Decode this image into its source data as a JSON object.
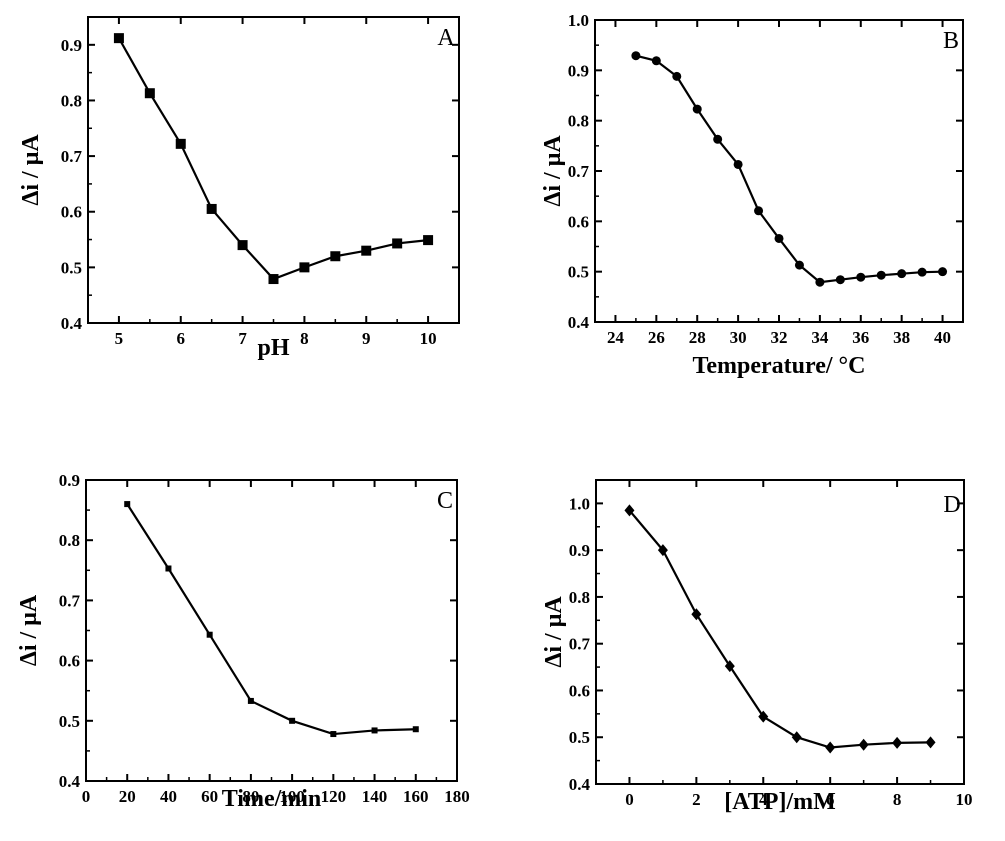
{
  "chart_data": [
    {
      "type": "line",
      "panel_label": "A",
      "xlabel": "pH",
      "ylabel": "Δi / μA",
      "xlim": [
        4.5,
        10.5
      ],
      "ylim": [
        0.4,
        0.95
      ],
      "xticks": [
        5,
        6,
        7,
        8,
        9,
        10
      ],
      "yticks": [
        0.4,
        0.5,
        0.6,
        0.7,
        0.8,
        0.9
      ],
      "marker": "square",
      "series": [
        {
          "x": [
            5,
            5.5,
            6,
            6.5,
            7,
            7.5,
            8,
            8.5,
            9,
            9.5,
            10
          ],
          "y": [
            0.912,
            0.813,
            0.722,
            0.605,
            0.54,
            0.479,
            0.5,
            0.52,
            0.53,
            0.543,
            0.549
          ]
        }
      ]
    },
    {
      "type": "line",
      "panel_label": "B",
      "xlabel": "Temperature/ °C",
      "ylabel": "Δi / μA",
      "xlim": [
        23,
        41
      ],
      "ylim": [
        0.4,
        1.0
      ],
      "xticks": [
        24,
        26,
        28,
        30,
        32,
        34,
        36,
        38,
        40
      ],
      "yticks": [
        0.4,
        0.5,
        0.6,
        0.7,
        0.8,
        0.9,
        1.0
      ],
      "marker": "circle",
      "series": [
        {
          "x": [
            25,
            26,
            27,
            28,
            29,
            30,
            31,
            32,
            33,
            34,
            35,
            36,
            37,
            38,
            39,
            40
          ],
          "y": [
            0.929,
            0.919,
            0.888,
            0.823,
            0.763,
            0.713,
            0.621,
            0.566,
            0.513,
            0.479,
            0.484,
            0.489,
            0.493,
            0.496,
            0.499,
            0.5
          ]
        }
      ]
    },
    {
      "type": "line",
      "panel_label": "C",
      "xlabel": "Time/min",
      "ylabel": "Δi / μA",
      "xlim": [
        0,
        180
      ],
      "ylim": [
        0.4,
        0.9
      ],
      "xticks": [
        0,
        20,
        40,
        60,
        80,
        100,
        120,
        140,
        160,
        180
      ],
      "yticks": [
        0.4,
        0.5,
        0.6,
        0.7,
        0.8,
        0.9
      ],
      "marker": "small-square",
      "series": [
        {
          "x": [
            20,
            40,
            60,
            80,
            100,
            120,
            140,
            160
          ],
          "y": [
            0.86,
            0.753,
            0.643,
            0.533,
            0.5,
            0.478,
            0.484,
            0.486
          ]
        }
      ]
    },
    {
      "type": "line",
      "panel_label": "D",
      "xlabel": "[ATP]/mM",
      "ylabel": "Δi / μA",
      "xlim": [
        -1,
        10
      ],
      "ylim": [
        0.4,
        1.05
      ],
      "xticks": [
        0,
        2,
        4,
        6,
        8,
        10
      ],
      "yticks": [
        0.4,
        0.5,
        0.6,
        0.7,
        0.8,
        0.9,
        1.0
      ],
      "marker": "diamond",
      "series": [
        {
          "x": [
            0,
            1,
            2,
            3,
            4,
            5,
            6,
            7,
            8,
            9
          ],
          "y": [
            0.985,
            0.9,
            0.763,
            0.652,
            0.544,
            0.5,
            0.478,
            0.484,
            0.488,
            0.489
          ]
        }
      ]
    }
  ]
}
